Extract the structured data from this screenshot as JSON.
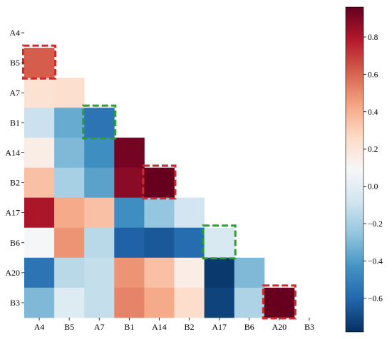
{
  "chart_data": {
    "type": "heatmap",
    "mask": "lower-triangle",
    "row_labels": [
      "A4",
      "B5",
      "A7",
      "B1",
      "A14",
      "B2",
      "A17",
      "B6",
      "A20",
      "B3"
    ],
    "col_labels": [
      "A4",
      "B5",
      "A7",
      "B1",
      "A14",
      "B2",
      "A17",
      "B6",
      "A20",
      "B3"
    ],
    "values": [
      [
        null,
        null,
        null,
        null,
        null,
        null,
        null,
        null,
        null,
        null
      ],
      [
        0.62,
        null,
        null,
        null,
        null,
        null,
        null,
        null,
        null,
        null
      ],
      [
        0.22,
        0.24,
        null,
        null,
        null,
        null,
        null,
        null,
        null,
        null
      ],
      [
        -0.1,
        -0.35,
        -0.55,
        null,
        null,
        null,
        null,
        null,
        null,
        null
      ],
      [
        0.15,
        -0.3,
        -0.45,
        0.93,
        null,
        null,
        null,
        null,
        null,
        null
      ],
      [
        0.35,
        -0.2,
        -0.38,
        0.88,
        0.97,
        null,
        null,
        null,
        null,
        null
      ],
      [
        0.8,
        0.42,
        0.35,
        -0.45,
        -0.25,
        -0.08,
        null,
        null,
        null,
        null
      ],
      [
        0.08,
        0.48,
        -0.15,
        -0.62,
        -0.65,
        -0.58,
        -0.05,
        null,
        null,
        null
      ],
      [
        -0.55,
        -0.15,
        -0.12,
        0.48,
        0.35,
        0.15,
        -0.75,
        -0.3,
        null,
        null
      ],
      [
        -0.3,
        -0.03,
        -0.12,
        0.52,
        0.42,
        0.25,
        -0.72,
        -0.18,
        0.97,
        null
      ]
    ],
    "colormap": "RdBu_r",
    "vmin": -0.78,
    "vmax": 0.96,
    "colorbar": {
      "ticks": [
        -0.6,
        -0.4,
        -0.2,
        0.0,
        0.2,
        0.4,
        0.6,
        0.8
      ],
      "tick_labels": [
        "−0.6",
        "−0.4",
        "−0.2",
        "0.0",
        "0.2",
        "0.4",
        "0.6",
        "0.8"
      ]
    },
    "highlights": [
      {
        "row": 1,
        "col": 0,
        "color": "#d62728"
      },
      {
        "row": 3,
        "col": 2,
        "color": "#2ca02c"
      },
      {
        "row": 5,
        "col": 4,
        "color": "#d62728"
      },
      {
        "row": 7,
        "col": 6,
        "color": "#2ca02c"
      },
      {
        "row": 9,
        "col": 8,
        "color": "#d62728"
      }
    ],
    "title": "",
    "xlabel": "",
    "ylabel": ""
  }
}
